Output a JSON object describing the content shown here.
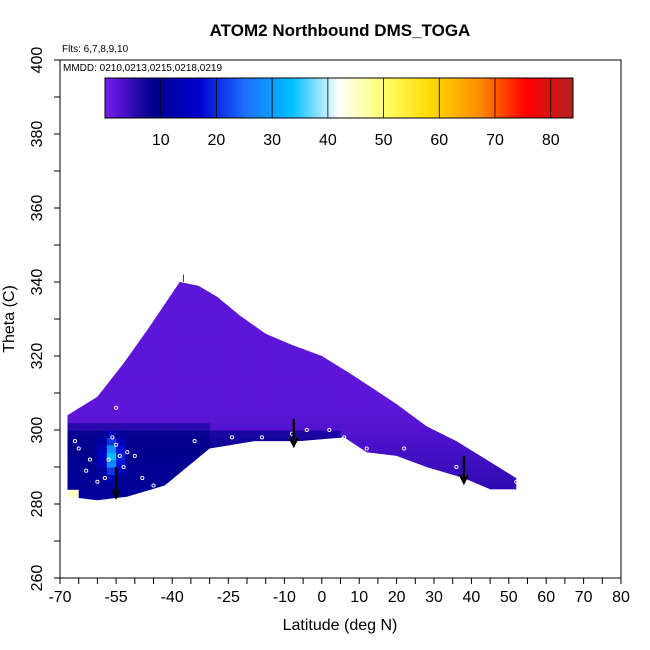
{
  "chart_data": {
    "type": "heatmap",
    "title": "ATOM2 Northbound DMS_TOGA",
    "flights_label": "Flts: 6,7,8,9,10",
    "dates_label": "MMDD: 0210,0213,0215,0218,0219",
    "xlabel": "Latitude (deg N)",
    "ylabel": "Theta (C)",
    "xlim": [
      -70,
      80
    ],
    "ylim": [
      260,
      400
    ],
    "x_ticks": [
      "-70",
      "-55",
      "-40",
      "-25",
      "-10",
      "5",
      "20",
      "35",
      "50",
      "65",
      "80"
    ],
    "x_ticks_alt": [
      "-70",
      "-55",
      "-40",
      "-25",
      "-10",
      "0",
      "10",
      "20",
      "30",
      "40",
      "50",
      "60",
      "70",
      "80"
    ],
    "x_labels_shown": [
      {
        "value": -70,
        "label": "-70"
      },
      {
        "value": -55,
        "label": "-55"
      },
      {
        "value": -40,
        "label": "-40"
      },
      {
        "value": -25,
        "label": "-25"
      },
      {
        "value": -10,
        "label": "-10"
      },
      {
        "value": 0,
        "label": "0"
      },
      {
        "value": 10,
        "label": "10"
      },
      {
        "value": 20,
        "label": "20"
      },
      {
        "value": 30,
        "label": "30"
      },
      {
        "value": 40,
        "label": "40"
      },
      {
        "value": 50,
        "label": "50"
      },
      {
        "value": 60,
        "label": "60"
      },
      {
        "value": 70,
        "label": "70"
      },
      {
        "value": 80,
        "label": "80"
      }
    ],
    "y_ticks": [
      {
        "value": 260,
        "label": "260"
      },
      {
        "value": 280,
        "label": "280"
      },
      {
        "value": 300,
        "label": "300"
      },
      {
        "value": 320,
        "label": "320"
      },
      {
        "value": 340,
        "label": "340"
      },
      {
        "value": 360,
        "label": "360"
      },
      {
        "value": 380,
        "label": "380"
      },
      {
        "value": 400,
        "label": "400"
      }
    ],
    "colorbar": {
      "range": [
        0,
        84
      ],
      "ticks": [
        {
          "value": 10,
          "label": "10"
        },
        {
          "value": 20,
          "label": "20"
        },
        {
          "value": 30,
          "label": "30"
        },
        {
          "value": 40,
          "label": "40"
        },
        {
          "value": 50,
          "label": "50"
        },
        {
          "value": 60,
          "label": "60"
        },
        {
          "value": 70,
          "label": "70"
        },
        {
          "value": 80,
          "label": "80"
        }
      ],
      "colors": [
        "#7a1cf0",
        "#00008b",
        "#0000cd",
        "#1e6fff",
        "#00bfff",
        "#ffffff",
        "#ffff66",
        "#ffd700",
        "#ff8c00",
        "#ff0000",
        "#b22222"
      ]
    },
    "field": {
      "outline": [
        [
          -68,
          282
        ],
        [
          -68,
          304
        ],
        [
          -60,
          309
        ],
        [
          -53,
          318
        ],
        [
          -46,
          328
        ],
        [
          -38,
          340
        ],
        [
          -33,
          339
        ],
        [
          -28,
          336
        ],
        [
          -22,
          331
        ],
        [
          -15,
          326
        ],
        [
          -8,
          323
        ],
        [
          0,
          320
        ],
        [
          8,
          315
        ],
        [
          14,
          311
        ],
        [
          20,
          307
        ],
        [
          28,
          301
        ],
        [
          36,
          297
        ],
        [
          44,
          292
        ],
        [
          52,
          287
        ],
        [
          52,
          284
        ],
        [
          45,
          284
        ],
        [
          38,
          287
        ],
        [
          28,
          290
        ],
        [
          20,
          293
        ],
        [
          12,
          294
        ],
        [
          6,
          298
        ],
        [
          -6,
          297
        ],
        [
          -18,
          297
        ],
        [
          -30,
          295
        ],
        [
          -42,
          285
        ],
        [
          -52,
          282
        ],
        [
          -60,
          281
        ],
        [
          -68,
          282
        ]
      ],
      "base_value": 2,
      "high_zone": {
        "lat": [
          -60,
          -52
        ],
        "theta": [
          283,
          300
        ],
        "value_max": 35
      },
      "low_band_value": 10
    },
    "sample_points": [
      [
        -66,
        297
      ],
      [
        -65,
        295
      ],
      [
        -63,
        289
      ],
      [
        -62,
        292
      ],
      [
        -60,
        286
      ],
      [
        -58,
        287
      ],
      [
        -57,
        292
      ],
      [
        -56,
        298
      ],
      [
        -55,
        296
      ],
      [
        -54,
        293
      ],
      [
        -53,
        290
      ],
      [
        -52,
        294
      ],
      [
        -50,
        293
      ],
      [
        -48,
        287
      ],
      [
        -45,
        285
      ],
      [
        -40,
        283
      ],
      [
        -34,
        297
      ],
      [
        -24,
        298
      ],
      [
        -16,
        298
      ],
      [
        -8,
        299
      ],
      [
        -4,
        300
      ],
      [
        2,
        300
      ],
      [
        6,
        298
      ],
      [
        12,
        295
      ],
      [
        22,
        295
      ],
      [
        36,
        290
      ],
      [
        52,
        286
      ],
      [
        -55,
        306
      ]
    ],
    "arrows": [
      {
        "lat": -55,
        "theta_top": 290,
        "theta_bottom": 282
      },
      {
        "lat": -7.5,
        "theta_top": 303,
        "theta_bottom": 296
      },
      {
        "lat": 38,
        "theta_top": 293,
        "theta_bottom": 286
      }
    ]
  }
}
